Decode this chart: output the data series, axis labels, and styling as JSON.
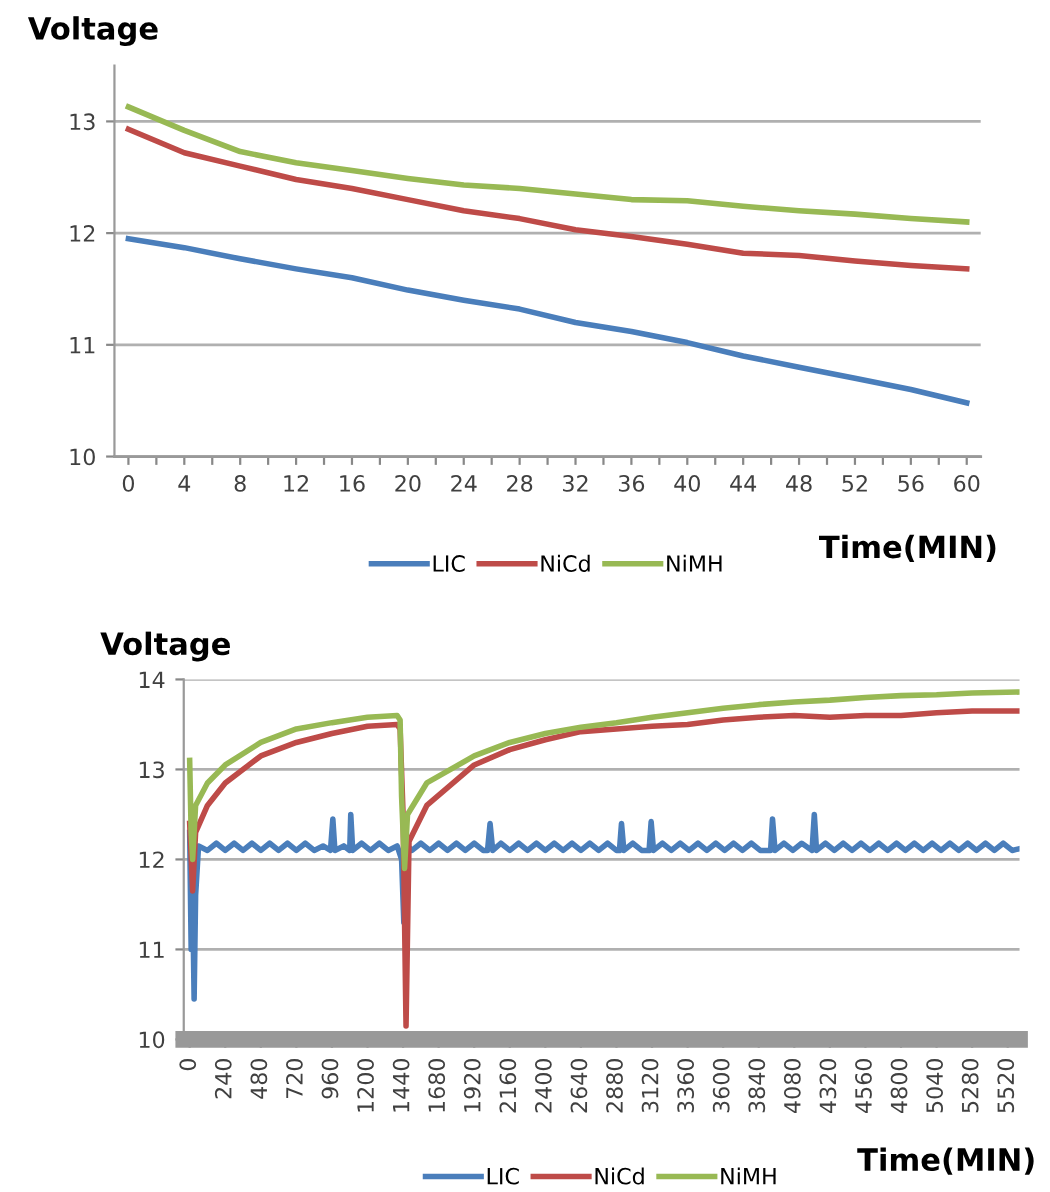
{
  "chart_data": [
    {
      "type": "line",
      "ylabel": "Voltage",
      "xlabel": "Time(MIN)",
      "xlim": [
        -1,
        61
      ],
      "ylim": [
        10,
        13.5
      ],
      "xticks": [
        0,
        {
          "value": 2,
          "label": null
        },
        4,
        {
          "value": 6,
          "label": null
        },
        8,
        {
          "value": 10,
          "label": null
        },
        12,
        {
          "value": 14,
          "label": null
        },
        16,
        {
          "value": 18,
          "label": null
        },
        20,
        {
          "value": 22,
          "label": null
        },
        24,
        {
          "value": 26,
          "label": null
        },
        28,
        {
          "value": 30,
          "label": null
        },
        32,
        {
          "value": 34,
          "label": null
        },
        36,
        {
          "value": 38,
          "label": null
        },
        40,
        {
          "value": 42,
          "label": null
        },
        44,
        {
          "value": 46,
          "label": null
        },
        48,
        {
          "value": 50,
          "label": null
        },
        52,
        {
          "value": 54,
          "label": null
        },
        56,
        {
          "value": 58,
          "label": null
        },
        60
      ],
      "yticks": [
        10,
        11,
        12,
        13
      ],
      "grid": "y",
      "legend": "bottom",
      "marker": "none",
      "line_style": "solid",
      "x": [
        0,
        4,
        8,
        12,
        16,
        20,
        24,
        28,
        32,
        36,
        40,
        44,
        48,
        52,
        56,
        60
      ],
      "series": [
        {
          "name": "LIC",
          "color": "#4a7ebb",
          "values": [
            11.95,
            11.87,
            11.77,
            11.68,
            11.6,
            11.49,
            11.4,
            11.32,
            11.2,
            11.12,
            11.02,
            10.9,
            10.8,
            10.7,
            10.6,
            10.48
          ]
        },
        {
          "name": "NiCd",
          "color": "#be4b48",
          "values": [
            12.93,
            12.72,
            12.6,
            12.48,
            12.4,
            12.3,
            12.2,
            12.13,
            12.03,
            11.97,
            11.9,
            11.82,
            11.8,
            11.75,
            11.71,
            11.68
          ]
        },
        {
          "name": "NiMH",
          "color": "#98b954",
          "values": [
            13.13,
            12.92,
            12.73,
            12.63,
            12.56,
            12.49,
            12.43,
            12.4,
            12.35,
            12.3,
            12.29,
            12.24,
            12.2,
            12.17,
            12.13,
            12.1
          ]
        }
      ]
    },
    {
      "type": "line",
      "ylabel": "Voltage",
      "xlabel": "Time(MIN)",
      "xlim": [
        -40,
        5600
      ],
      "ylim": [
        10,
        14
      ],
      "xticks": [
        0,
        240,
        480,
        720,
        960,
        1200,
        1440,
        1680,
        1920,
        2160,
        2400,
        2640,
        2880,
        3120,
        3360,
        3600,
        3840,
        4080,
        4320,
        4560,
        4800,
        5040,
        5280,
        5520
      ],
      "yticks": [
        10,
        11,
        12,
        13,
        14
      ],
      "grid": "y",
      "legend": "bottom",
      "marker": "none",
      "line_style": "solid",
      "series": [
        {
          "name": "LIC",
          "color": "#4a7ebb",
          "x": [
            0,
            10,
            20,
            30,
            40,
            60,
            120,
            180,
            240,
            300,
            360,
            420,
            480,
            540,
            600,
            660,
            720,
            780,
            840,
            900,
            950,
            966,
            980,
            1040,
            1080,
            1087,
            1100,
            1160,
            1220,
            1280,
            1340,
            1400,
            1430,
            1445,
            1455,
            1470,
            1500,
            1560,
            1620,
            1680,
            1740,
            1800,
            1860,
            1920,
            1980,
            2010,
            2027,
            2045,
            2100,
            2160,
            2220,
            2280,
            2340,
            2400,
            2460,
            2520,
            2580,
            2640,
            2700,
            2760,
            2820,
            2880,
            2900,
            2914,
            2930,
            2990,
            3050,
            3100,
            3114,
            3130,
            3190,
            3250,
            3310,
            3370,
            3430,
            3490,
            3550,
            3610,
            3670,
            3730,
            3790,
            3850,
            3910,
            3920,
            3933,
            3950,
            4010,
            4070,
            4130,
            4200,
            4215,
            4230,
            4290,
            4350,
            4410,
            4470,
            4530,
            4590,
            4650,
            4710,
            4770,
            4830,
            4890,
            4950,
            5010,
            5070,
            5130,
            5190,
            5250,
            5310,
            5370,
            5430,
            5490,
            5550,
            5600
          ],
          "values": [
            12.3,
            11.0,
            11.6,
            10.45,
            11.6,
            12.15,
            12.1,
            12.18,
            12.1,
            12.18,
            12.1,
            12.18,
            12.1,
            12.18,
            12.1,
            12.18,
            12.1,
            12.18,
            12.1,
            12.15,
            12.1,
            12.45,
            12.1,
            12.15,
            12.1,
            12.5,
            12.1,
            12.18,
            12.1,
            12.18,
            12.1,
            12.15,
            12.0,
            11.3,
            11.6,
            12.15,
            12.1,
            12.18,
            12.1,
            12.18,
            12.1,
            12.18,
            12.1,
            12.18,
            12.1,
            12.1,
            12.4,
            12.1,
            12.18,
            12.1,
            12.18,
            12.1,
            12.18,
            12.1,
            12.18,
            12.1,
            12.18,
            12.1,
            12.18,
            12.1,
            12.18,
            12.1,
            12.1,
            12.4,
            12.1,
            12.18,
            12.1,
            12.1,
            12.42,
            12.1,
            12.18,
            12.1,
            12.18,
            12.1,
            12.18,
            12.1,
            12.18,
            12.1,
            12.18,
            12.1,
            12.18,
            12.1,
            12.1,
            12.1,
            12.45,
            12.1,
            12.18,
            12.1,
            12.18,
            12.1,
            12.5,
            12.1,
            12.18,
            12.1,
            12.18,
            12.1,
            12.18,
            12.1,
            12.18,
            12.1,
            12.18,
            12.1,
            12.18,
            12.1,
            12.18,
            12.1,
            12.18,
            12.1,
            12.18,
            12.1,
            12.18,
            12.1,
            12.18,
            12.1,
            12.12
          ]
        },
        {
          "name": "NiCd",
          "color": "#be4b48",
          "x": [
            0,
            20,
            40,
            120,
            240,
            480,
            720,
            960,
            1200,
            1400,
            1420,
            1440,
            1460,
            1480,
            1600,
            1920,
            2160,
            2400,
            2640,
            2880,
            3120,
            3360,
            3600,
            3840,
            4080,
            4320,
            4560,
            4800,
            5040,
            5280,
            5600
          ],
          "values": [
            12.4,
            11.65,
            12.3,
            12.6,
            12.85,
            13.15,
            13.3,
            13.4,
            13.48,
            13.5,
            13.45,
            12.5,
            10.15,
            12.2,
            12.6,
            13.05,
            13.22,
            13.33,
            13.42,
            13.45,
            13.48,
            13.5,
            13.55,
            13.58,
            13.6,
            13.58,
            13.6,
            13.6,
            13.63,
            13.65,
            13.65
          ]
        },
        {
          "name": "NiMH",
          "color": "#98b954",
          "x": [
            0,
            10,
            20,
            40,
            120,
            240,
            480,
            720,
            960,
            1200,
            1400,
            1420,
            1430,
            1450,
            1470,
            1600,
            1920,
            2160,
            2400,
            2640,
            2880,
            3120,
            3360,
            3600,
            3840,
            4080,
            4320,
            4560,
            4800,
            5040,
            5280,
            5600
          ],
          "values": [
            13.1,
            12.3,
            12.0,
            12.6,
            12.85,
            13.05,
            13.3,
            13.45,
            13.52,
            13.58,
            13.6,
            13.55,
            12.7,
            11.9,
            12.5,
            12.85,
            13.15,
            13.3,
            13.4,
            13.47,
            13.52,
            13.58,
            13.63,
            13.68,
            13.72,
            13.75,
            13.77,
            13.8,
            13.82,
            13.83,
            13.85,
            13.86
          ]
        }
      ]
    }
  ]
}
